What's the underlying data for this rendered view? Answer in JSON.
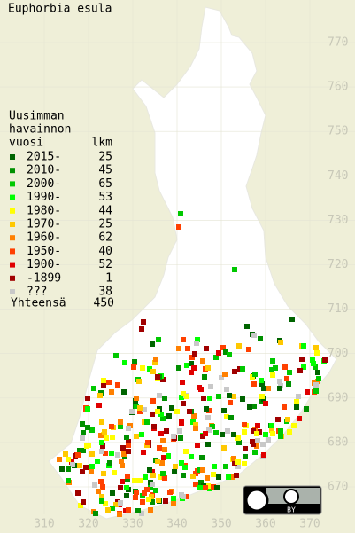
{
  "title": "Euphorbia esula",
  "legend": {
    "heading": [
      "Uusimman",
      "havainnon",
      "vuosi"
    ],
    "count_heading": "lkm",
    "rows": [
      {
        "label": "2015-",
        "count": "25",
        "color": "#006400"
      },
      {
        "label": "2010-",
        "count": "45",
        "color": "#009000"
      },
      {
        "label": "2000-",
        "count": "65",
        "color": "#00c800"
      },
      {
        "label": "1990-",
        "count": "53",
        "color": "#00ff00"
      },
      {
        "label": "1980-",
        "count": "44",
        "color": "#ffff00"
      },
      {
        "label": "1970-",
        "count": "25",
        "color": "#ffc800"
      },
      {
        "label": "1960-",
        "count": "62",
        "color": "#ff8000"
      },
      {
        "label": "1950-",
        "count": "40",
        "color": "#ff4000"
      },
      {
        "label": "1900-",
        "count": "52",
        "color": "#e00000"
      },
      {
        "label": "-1899",
        "count": "1",
        "color": "#a00000"
      },
      {
        "label": "???",
        "count": "38",
        "color": "#c8c8c8"
      }
    ],
    "total_label": "Yhteensä",
    "total": "450"
  },
  "y_labels": [
    "770",
    "760",
    "750",
    "740",
    "730",
    "720",
    "710",
    "700",
    "690",
    "680",
    "670"
  ],
  "x_labels": [
    "310",
    "320",
    "330",
    "340",
    "350",
    "360",
    "370"
  ],
  "license": "BY"
}
